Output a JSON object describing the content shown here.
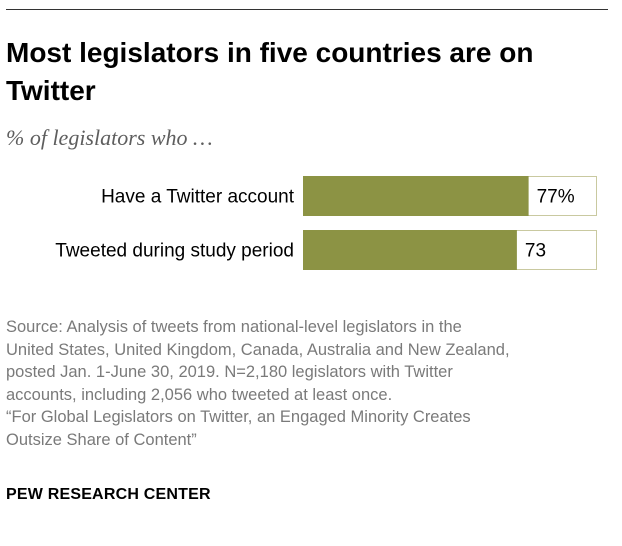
{
  "title": "Most legislators in five countries are on Twitter",
  "subtitle": "% of legislators who …",
  "chart_data": {
    "type": "bar",
    "orientation": "horizontal",
    "categories": [
      "Have a Twitter account",
      "Tweeted during study period"
    ],
    "values": [
      77,
      73
    ],
    "value_labels": [
      "77%",
      "73"
    ],
    "xlim": [
      0,
      100
    ],
    "bar_color": "#8c9344",
    "track_border_color": "#c9c9a0"
  },
  "source": {
    "lines": [
      "Source: Analysis of tweets from national-level legislators in the",
      "United States, United Kingdom, Canada, Australia and New Zealand,",
      "posted Jan. 1-June 30, 2019. N=2,180 legislators with Twitter",
      "accounts, including 2,056 who tweeted at least once.",
      "“For Global Legislators on Twitter, an Engaged Minority Creates",
      "Outsize Share of Content”"
    ]
  },
  "brand": "PEW RESEARCH CENTER"
}
